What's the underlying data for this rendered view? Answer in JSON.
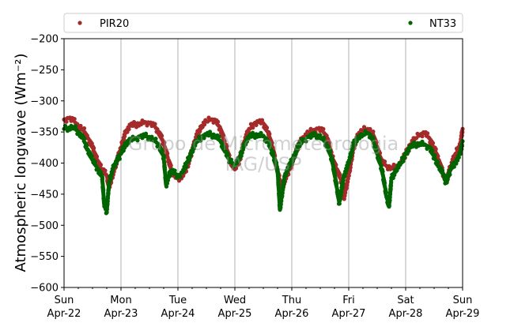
{
  "chart_data": {
    "type": "scatter",
    "ylabel": "Atmospheric longwave (Wm⁻²)",
    "ylim": [
      -600,
      -200
    ],
    "yticks": [
      -200,
      -250,
      -300,
      -350,
      -400,
      -450,
      -500,
      -550,
      -600
    ],
    "ytick_labels": [
      "−200",
      "−250",
      "−300",
      "−350",
      "−400",
      "−450",
      "−500",
      "−550",
      "−600"
    ],
    "xlim": [
      "2018-04-22 00:00",
      "2018-04-29 00:00"
    ],
    "xticks": [
      {
        "date": "2018-04-22",
        "day": "Sun",
        "label": "Apr-22"
      },
      {
        "date": "2018-04-23",
        "day": "Mon",
        "label": "Apr-23"
      },
      {
        "date": "2018-04-24",
        "day": "Tue",
        "label": "Apr-24"
      },
      {
        "date": "2018-04-25",
        "day": "Wed",
        "label": "Apr-25"
      },
      {
        "date": "2018-04-26",
        "day": "Thu",
        "label": "Apr-26"
      },
      {
        "date": "2018-04-27",
        "day": "Fri",
        "label": "Apr-27"
      },
      {
        "date": "2018-04-28",
        "day": "Sat",
        "label": "Apr-28"
      },
      {
        "date": "2018-04-29",
        "day": "Sun",
        "label": "Apr-29"
      }
    ],
    "grid": "vertical at day ticks",
    "legend": "top, outside plot",
    "watermark": [
      "Grupo de Micrometeorologia",
      "IAG/USP"
    ],
    "series": [
      {
        "name": "PIR20",
        "color": "#a52a2a",
        "points": [
          [
            "2018-04-22 00:00",
            -330
          ],
          [
            "2018-04-22 02:00",
            -328
          ],
          [
            "2018-04-22 04:00",
            -332
          ],
          [
            "2018-04-22 06:00",
            -340
          ],
          [
            "2018-04-22 08:00",
            -345
          ],
          [
            "2018-04-22 10:00",
            -360
          ],
          [
            "2018-04-22 12:00",
            -375
          ],
          [
            "2018-04-22 14:00",
            -395
          ],
          [
            "2018-04-22 16:00",
            -410
          ],
          [
            "2018-04-22 18:00",
            -420
          ],
          [
            "2018-04-22 19:00",
            -440
          ],
          [
            "2018-04-22 20:00",
            -425
          ],
          [
            "2018-04-22 22:00",
            -400
          ],
          [
            "2018-04-23 00:00",
            -375
          ],
          [
            "2018-04-23 02:00",
            -350
          ],
          [
            "2018-04-23 04:00",
            -340
          ],
          [
            "2018-04-23 06:00",
            -338
          ],
          [
            "2018-04-23 08:00",
            -336
          ],
          [
            "2018-04-23 10:00",
            -334
          ],
          [
            "2018-04-23 12:00",
            -336
          ],
          [
            "2018-04-23 14:00",
            -340
          ],
          [
            "2018-04-23 16:00",
            -350
          ],
          [
            "2018-04-23 18:00",
            -368
          ],
          [
            "2018-04-23 20:00",
            -395
          ],
          [
            "2018-04-23 22:00",
            -420
          ],
          [
            "2018-04-24 00:00",
            -425
          ],
          [
            "2018-04-24 02:00",
            -420
          ],
          [
            "2018-04-24 04:00",
            -405
          ],
          [
            "2018-04-24 06:00",
            -380
          ],
          [
            "2018-04-24 08:00",
            -355
          ],
          [
            "2018-04-24 10:00",
            -340
          ],
          [
            "2018-04-24 12:00",
            -333
          ],
          [
            "2018-04-24 14:00",
            -330
          ],
          [
            "2018-04-24 16:00",
            -333
          ],
          [
            "2018-04-24 18:00",
            -345
          ],
          [
            "2018-04-24 20:00",
            -370
          ],
          [
            "2018-04-24 22:00",
            -395
          ],
          [
            "2018-04-25 00:00",
            -410
          ],
          [
            "2018-04-25 02:00",
            -395
          ],
          [
            "2018-04-25 04:00",
            -365
          ],
          [
            "2018-04-25 06:00",
            -345
          ],
          [
            "2018-04-25 08:00",
            -337
          ],
          [
            "2018-04-25 10:00",
            -334
          ],
          [
            "2018-04-25 12:00",
            -336
          ],
          [
            "2018-04-25 14:00",
            -350
          ],
          [
            "2018-04-25 16:00",
            -375
          ],
          [
            "2018-04-25 18:00",
            -415
          ],
          [
            "2018-04-25 20:00",
            -440
          ],
          [
            "2018-04-25 21:00",
            -428
          ],
          [
            "2018-04-25 23:00",
            -410
          ],
          [
            "2018-04-26 01:00",
            -390
          ],
          [
            "2018-04-26 03:00",
            -370
          ],
          [
            "2018-04-26 05:00",
            -358
          ],
          [
            "2018-04-26 07:00",
            -350
          ],
          [
            "2018-04-26 09:00",
            -347
          ],
          [
            "2018-04-26 11:00",
            -345
          ],
          [
            "2018-04-26 13:00",
            -348
          ],
          [
            "2018-04-26 15:00",
            -360
          ],
          [
            "2018-04-26 17:00",
            -390
          ],
          [
            "2018-04-26 19:00",
            -410
          ],
          [
            "2018-04-26 21:00",
            -430
          ],
          [
            "2018-04-26 22:00",
            -455
          ],
          [
            "2018-04-27 00:00",
            -420
          ],
          [
            "2018-04-27 02:00",
            -375
          ],
          [
            "2018-04-27 04:00",
            -355
          ],
          [
            "2018-04-27 06:00",
            -347
          ],
          [
            "2018-04-27 08:00",
            -345
          ],
          [
            "2018-04-27 10:00",
            -350
          ],
          [
            "2018-04-27 12:00",
            -375
          ],
          [
            "2018-04-27 14:00",
            -398
          ],
          [
            "2018-04-27 16:00",
            -405
          ],
          [
            "2018-04-27 18:00",
            -407
          ],
          [
            "2018-04-27 20:00",
            -405
          ],
          [
            "2018-04-27 22:00",
            -400
          ],
          [
            "2018-04-28 00:00",
            -385
          ],
          [
            "2018-04-28 02:00",
            -370
          ],
          [
            "2018-04-28 04:00",
            -360
          ],
          [
            "2018-04-28 06:00",
            -355
          ],
          [
            "2018-04-28 08:00",
            -352
          ],
          [
            "2018-04-28 10:00",
            -360
          ],
          [
            "2018-04-28 12:00",
            -375
          ],
          [
            "2018-04-28 14:00",
            -395
          ],
          [
            "2018-04-28 16:00",
            -420
          ],
          [
            "2018-04-28 17:00",
            -430
          ],
          [
            "2018-04-28 19:00",
            -405
          ],
          [
            "2018-04-28 21:00",
            -385
          ],
          [
            "2018-04-28 23:00",
            -370
          ],
          [
            "2018-04-29 00:00",
            -345
          ]
        ]
      },
      {
        "name": "NT33",
        "color": "#006400",
        "points": [
          [
            "2018-04-22 00:00",
            -345
          ],
          [
            "2018-04-22 02:00",
            -343
          ],
          [
            "2018-04-22 04:00",
            -342
          ],
          [
            "2018-04-22 06:00",
            -350
          ],
          [
            "2018-04-22 08:00",
            -360
          ],
          [
            "2018-04-22 10:00",
            -378
          ],
          [
            "2018-04-22 12:00",
            -395
          ],
          [
            "2018-04-22 14:00",
            -408
          ],
          [
            "2018-04-22 16:00",
            -420
          ],
          [
            "2018-04-22 17:00",
            -470
          ],
          [
            "2018-04-22 18:00",
            -478
          ],
          [
            "2018-04-22 19:00",
            -430
          ],
          [
            "2018-04-22 21:00",
            -405
          ],
          [
            "2018-04-23 00:00",
            -385
          ],
          [
            "2018-04-23 02:00",
            -368
          ],
          [
            "2018-04-23 04:00",
            -362
          ],
          [
            "2018-04-23 06:00",
            -360
          ],
          [
            "2018-04-23 08:00",
            -358
          ],
          [
            "2018-04-23 10:00",
            -357
          ],
          [
            "2018-04-23 12:00",
            -358
          ],
          [
            "2018-04-23 14:00",
            -362
          ],
          [
            "2018-04-23 16:00",
            -372
          ],
          [
            "2018-04-23 18:00",
            -390
          ],
          [
            "2018-04-23 19:00",
            -435
          ],
          [
            "2018-04-23 21:00",
            -412
          ],
          [
            "2018-04-24 00:00",
            -420
          ],
          [
            "2018-04-24 02:00",
            -415
          ],
          [
            "2018-04-24 04:00",
            -398
          ],
          [
            "2018-04-24 06:00",
            -380
          ],
          [
            "2018-04-24 08:00",
            -365
          ],
          [
            "2018-04-24 10:00",
            -358
          ],
          [
            "2018-04-24 12:00",
            -355
          ],
          [
            "2018-04-24 14:00",
            -354
          ],
          [
            "2018-04-24 16:00",
            -356
          ],
          [
            "2018-04-24 18:00",
            -365
          ],
          [
            "2018-04-24 20:00",
            -382
          ],
          [
            "2018-04-24 22:00",
            -398
          ],
          [
            "2018-04-25 00:00",
            -402
          ],
          [
            "2018-04-25 02:00",
            -392
          ],
          [
            "2018-04-25 04:00",
            -370
          ],
          [
            "2018-04-25 06:00",
            -358
          ],
          [
            "2018-04-25 08:00",
            -355
          ],
          [
            "2018-04-25 10:00",
            -354
          ],
          [
            "2018-04-25 12:00",
            -356
          ],
          [
            "2018-04-25 14:00",
            -366
          ],
          [
            "2018-04-25 16:00",
            -385
          ],
          [
            "2018-04-25 18:00",
            -410
          ],
          [
            "2018-04-25 19:00",
            -475
          ],
          [
            "2018-04-25 21:00",
            -420
          ],
          [
            "2018-04-25 23:00",
            -405
          ],
          [
            "2018-04-26 01:00",
            -388
          ],
          [
            "2018-04-26 03:00",
            -372
          ],
          [
            "2018-04-26 05:00",
            -363
          ],
          [
            "2018-04-26 07:00",
            -358
          ],
          [
            "2018-04-26 09:00",
            -356
          ],
          [
            "2018-04-26 11:00",
            -355
          ],
          [
            "2018-04-26 13:00",
            -360
          ],
          [
            "2018-04-26 15:00",
            -372
          ],
          [
            "2018-04-26 17:00",
            -395
          ],
          [
            "2018-04-26 19:00",
            -440
          ],
          [
            "2018-04-26 20:00",
            -465
          ],
          [
            "2018-04-26 22:00",
            -420
          ],
          [
            "2018-04-27 00:00",
            -400
          ],
          [
            "2018-04-27 02:00",
            -370
          ],
          [
            "2018-04-27 04:00",
            -358
          ],
          [
            "2018-04-27 06:00",
            -354
          ],
          [
            "2018-04-27 08:00",
            -352
          ],
          [
            "2018-04-27 10:00",
            -360
          ],
          [
            "2018-04-27 12:00",
            -385
          ],
          [
            "2018-04-27 14:00",
            -410
          ],
          [
            "2018-04-27 16:00",
            -455
          ],
          [
            "2018-04-27 17:00",
            -470
          ],
          [
            "2018-04-27 18:00",
            -425
          ],
          [
            "2018-04-27 20:00",
            -410
          ],
          [
            "2018-04-27 22:00",
            -400
          ],
          [
            "2018-04-28 00:00",
            -385
          ],
          [
            "2018-04-28 02:00",
            -375
          ],
          [
            "2018-04-28 04:00",
            -370
          ],
          [
            "2018-04-28 06:00",
            -368
          ],
          [
            "2018-04-28 08:00",
            -370
          ],
          [
            "2018-04-28 10:00",
            -375
          ],
          [
            "2018-04-28 12:00",
            -390
          ],
          [
            "2018-04-28 14:00",
            -405
          ],
          [
            "2018-04-28 16:00",
            -420
          ],
          [
            "2018-04-28 17:00",
            -432
          ],
          [
            "2018-04-28 19:00",
            -410
          ],
          [
            "2018-04-28 21:00",
            -398
          ],
          [
            "2018-04-28 23:00",
            -385
          ],
          [
            "2018-04-29 00:00",
            -365
          ]
        ]
      }
    ]
  }
}
